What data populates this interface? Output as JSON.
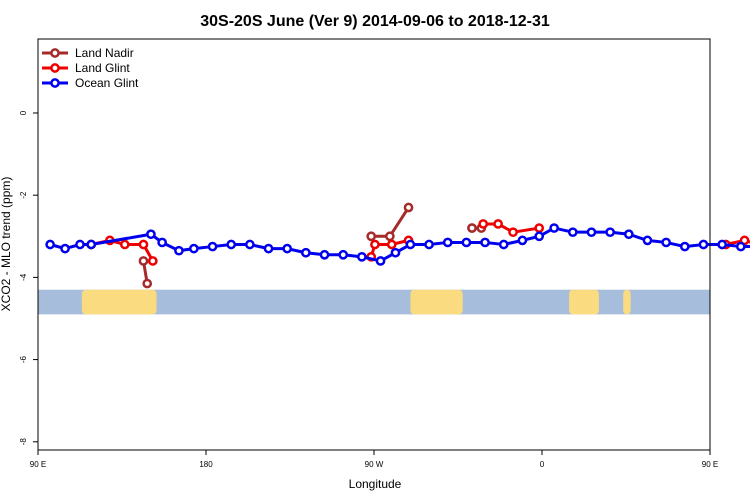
{
  "chart_data": {
    "type": "line",
    "title": "30S-20S June (Ver 9)   2014-09-06 to 2018-12-31",
    "xlabel": "Longitude",
    "ylabel": "XCO2 - MLO trend (ppm)",
    "xlim": [
      90,
      450
    ],
    "ylim": [
      -8.2,
      1.8
    ],
    "x_ticks": [
      {
        "value": 90,
        "label": "90 E"
      },
      {
        "value": 180,
        "label": "180"
      },
      {
        "value": 270,
        "label": "90 W"
      },
      {
        "value": 360,
        "label": "0"
      },
      {
        "value": 450,
        "label": "90 E"
      },
      {
        "value": 540,
        "label": "180"
      }
    ],
    "y_ticks": [
      {
        "value": 0,
        "label": "0"
      },
      {
        "value": -2,
        "label": "-2"
      },
      {
        "value": -4,
        "label": "-4"
      },
      {
        "value": -6,
        "label": "-6"
      },
      {
        "value": -8,
        "label": "-8"
      }
    ],
    "legend_position": "top-left",
    "series": [
      {
        "name": "Land Nadir",
        "color": "#a52a2a",
        "segments": [
          {
            "x": [
              146.5,
              148.5
            ],
            "y": [
              -3.6,
              -4.15
            ]
          },
          {
            "x": [
              268.5,
              278.5,
              288.5
            ],
            "y": [
              -3.0,
              -3.0,
              -2.3
            ]
          },
          {
            "x": [
              322.5
            ],
            "y": [
              -2.8
            ]
          },
          {
            "x": [
              322.5,
              327.5
            ],
            "y": [
              -2.8,
              -2.8
            ]
          },
          {
            "x": [
              512.5,
              516.5
            ],
            "y": [
              -3.6,
              -4.15
            ]
          }
        ]
      },
      {
        "name": "Land Glint",
        "color": "#ee0000",
        "segments": [
          {
            "x": [
              118.5,
              128.5,
              136.5,
              146.5,
              151.5
            ],
            "y": [
              -3.2,
              -3.1,
              -3.2,
              -3.2,
              -3.6
            ]
          },
          {
            "x": [
              268.5,
              270.5,
              279.5,
              288.5
            ],
            "y": [
              -3.5,
              -3.2,
              -3.2,
              -3.1
            ]
          },
          {
            "x": [
              328.5,
              336.5,
              344.5,
              358.5
            ],
            "y": [
              -2.7,
              -2.7,
              -2.9,
              -2.8
            ]
          },
          {
            "x": [
              458.5,
              468.5,
              476.5,
              486.5,
              491.5
            ],
            "y": [
              -3.2,
              -3.1,
              -3.2,
              -3.2,
              -3.6
            ]
          }
        ]
      },
      {
        "name": "Ocean Glint",
        "color": "#0000ee",
        "segments": [
          {
            "x": [
              96.5,
              104.5,
              112.5,
              118.5,
              150.5,
              156.5,
              165.5,
              173.5,
              183.5,
              193.5,
              203.5,
              213.5,
              223.5,
              233.5,
              243.5,
              253.5,
              263.5,
              273.5,
              281.5,
              289.5,
              299.5,
              309.5,
              319.5,
              329.5,
              339.5,
              349.5,
              358.5,
              366.5,
              376.5,
              386.5,
              396.5,
              406.5,
              416.5,
              426.5,
              436.5,
              446.5,
              456.5,
              466.5,
              476.5,
              486.5,
              496.5,
              506.5,
              516.5,
              522.5,
              532.5,
              542.5
            ],
            "y": [
              -3.2,
              -3.3,
              -3.2,
              -3.2,
              -2.95,
              -3.15,
              -3.35,
              -3.3,
              -3.25,
              -3.2,
              -3.2,
              -3.3,
              -3.3,
              -3.4,
              -3.45,
              -3.45,
              -3.5,
              -3.6,
              -3.4,
              -3.2,
              -3.2,
              -3.15,
              -3.15,
              -3.15,
              -3.2,
              -3.1,
              -3.0,
              -2.8,
              -2.9,
              -2.9,
              -2.9,
              -2.95,
              -3.1,
              -3.15,
              -3.25,
              -3.2,
              -3.2,
              -3.25,
              -3.25,
              -3.2,
              -3.2,
              -3.2,
              -2.95,
              -3.15,
              -3.35,
              -3.35
            ]
          }
        ]
      }
    ],
    "map_strip": {
      "ocean_color": "#a7bddc",
      "land_color": "#fadb7f",
      "lat_range": [
        -30,
        -20
      ],
      "land_regions": [
        {
          "lon": [
            113.5,
            153.5
          ]
        },
        {
          "lon": [
            289.5,
            317.5
          ]
        },
        {
          "lon": [
            374.5,
            390.5
          ]
        },
        {
          "lon": [
            403.5,
            407.5
          ]
        },
        {
          "lon": [
            474.5,
            513.5
          ]
        }
      ]
    }
  }
}
